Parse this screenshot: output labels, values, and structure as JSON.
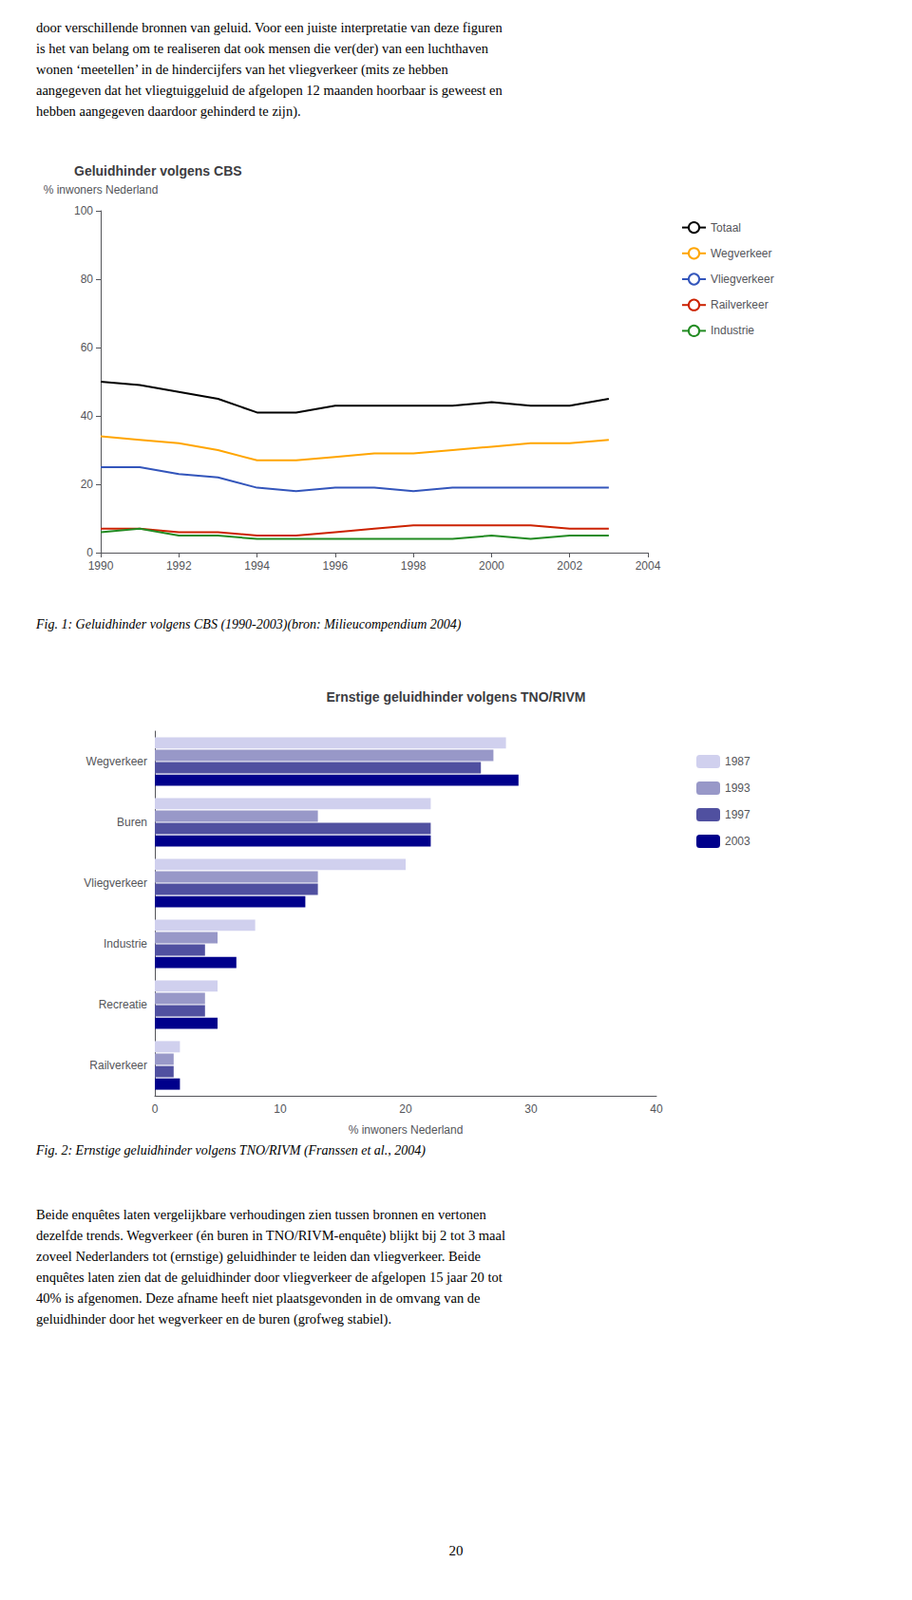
{
  "intro_text": [
    "door verschillende bronnen van geluid. Voor een juiste interpretatie van deze figuren",
    "is het van belang om te realiseren dat ook mensen die ver(der) van een luchthaven",
    "wonen ‘meetellen’ in de hindercijfers van het vliegverkeer (mits ze hebben",
    "aangegeven dat het vliegtuiggeluid de afgelopen 12 maanden hoorbaar is geweest en",
    "hebben aangegeven daardoor gehinderd te zijn)."
  ],
  "chart_data": [
    {
      "type": "line",
      "title": "Geluidhinder volgens CBS",
      "ylabel": "% inwoners Nederland",
      "x": [
        1990,
        1991,
        1992,
        1993,
        1994,
        1995,
        1996,
        1997,
        1998,
        1999,
        2000,
        2001,
        2002,
        2003
      ],
      "series": [
        {
          "name": "Totaal",
          "color": "#000000",
          "values": [
            50,
            49,
            47,
            45,
            41,
            41,
            43,
            43,
            43,
            43,
            44,
            43,
            43,
            45
          ]
        },
        {
          "name": "Wegverkeer",
          "color": "#FFA500",
          "values": [
            34,
            33,
            32,
            30,
            27,
            27,
            28,
            29,
            29,
            30,
            31,
            32,
            32,
            33
          ]
        },
        {
          "name": "Vliegverkeer",
          "color": "#3355BB",
          "values": [
            25,
            25,
            23,
            22,
            19,
            18,
            19,
            19,
            18,
            19,
            19,
            19,
            19,
            19
          ]
        },
        {
          "name": "Railverkeer",
          "color": "#CC2200",
          "values": [
            7,
            7,
            6,
            6,
            5,
            5,
            6,
            7,
            8,
            8,
            8,
            8,
            7,
            7
          ]
        },
        {
          "name": "Industrie",
          "color": "#228B22",
          "values": [
            6,
            7,
            5,
            5,
            4,
            4,
            4,
            4,
            4,
            4,
            5,
            4,
            5,
            5
          ]
        }
      ],
      "xlim": [
        1990,
        2004
      ],
      "xticks": [
        1990,
        1992,
        1994,
        1996,
        1998,
        2000,
        2002,
        2004
      ],
      "ylim": [
        0,
        100
      ],
      "yticks": [
        0,
        20,
        40,
        60,
        80,
        100
      ],
      "grid": false,
      "legend": "right",
      "caption": "Fig. 1: Geluidhinder volgens CBS (1990-2003)(bron: Milieucompendium 2004)"
    },
    {
      "type": "bar",
      "orientation": "horizontal",
      "title": "Ernstige geluidhinder volgens TNO/RIVM",
      "xlabel": "% inwoners Nederland",
      "categories": [
        "Wegverkeer",
        "Buren",
        "Vliegverkeer",
        "Industrie",
        "Recreatie",
        "Railverkeer"
      ],
      "series": [
        {
          "name": "1987",
          "color": "#D0D0EE",
          "values": [
            28,
            22,
            20,
            8,
            5,
            2
          ]
        },
        {
          "name": "1993",
          "color": "#9898C8",
          "values": [
            27,
            13,
            13,
            5,
            4,
            1.5
          ]
        },
        {
          "name": "1997",
          "color": "#5050A0",
          "values": [
            26,
            22,
            13,
            4,
            4,
            1.5
          ]
        },
        {
          "name": "2003",
          "color": "#00008B",
          "values": [
            29,
            22,
            12,
            6.5,
            5,
            2
          ]
        }
      ],
      "xlim": [
        0,
        40
      ],
      "xticks": [
        0,
        10,
        20,
        30,
        40
      ],
      "grid": false,
      "legend": "right",
      "caption": "Fig. 2: Ernstige geluidhinder volgens TNO/RIVM (Franssen et al., 2004)"
    }
  ],
  "bottom_text": [
    "Beide enquêtes laten vergelijkbare verhoudingen zien tussen bronnen en vertonen",
    "dezelfde trends. Wegverkeer (én buren in TNO/RIVM-enquête) blijkt bij 2 tot 3 maal",
    "zoveel Nederlanders tot (ernstige) geluidhinder te leiden dan vliegverkeer. Beide",
    "enquêtes laten zien dat de geluidhinder door vliegverkeer de afgelopen 15 jaar 20 tot",
    "40% is afgenomen. Deze afname heeft niet plaatsgevonden in de omvang van de",
    "geluidhinder door het wegverkeer en de buren (grofweg stabiel)."
  ],
  "page_number": "20"
}
